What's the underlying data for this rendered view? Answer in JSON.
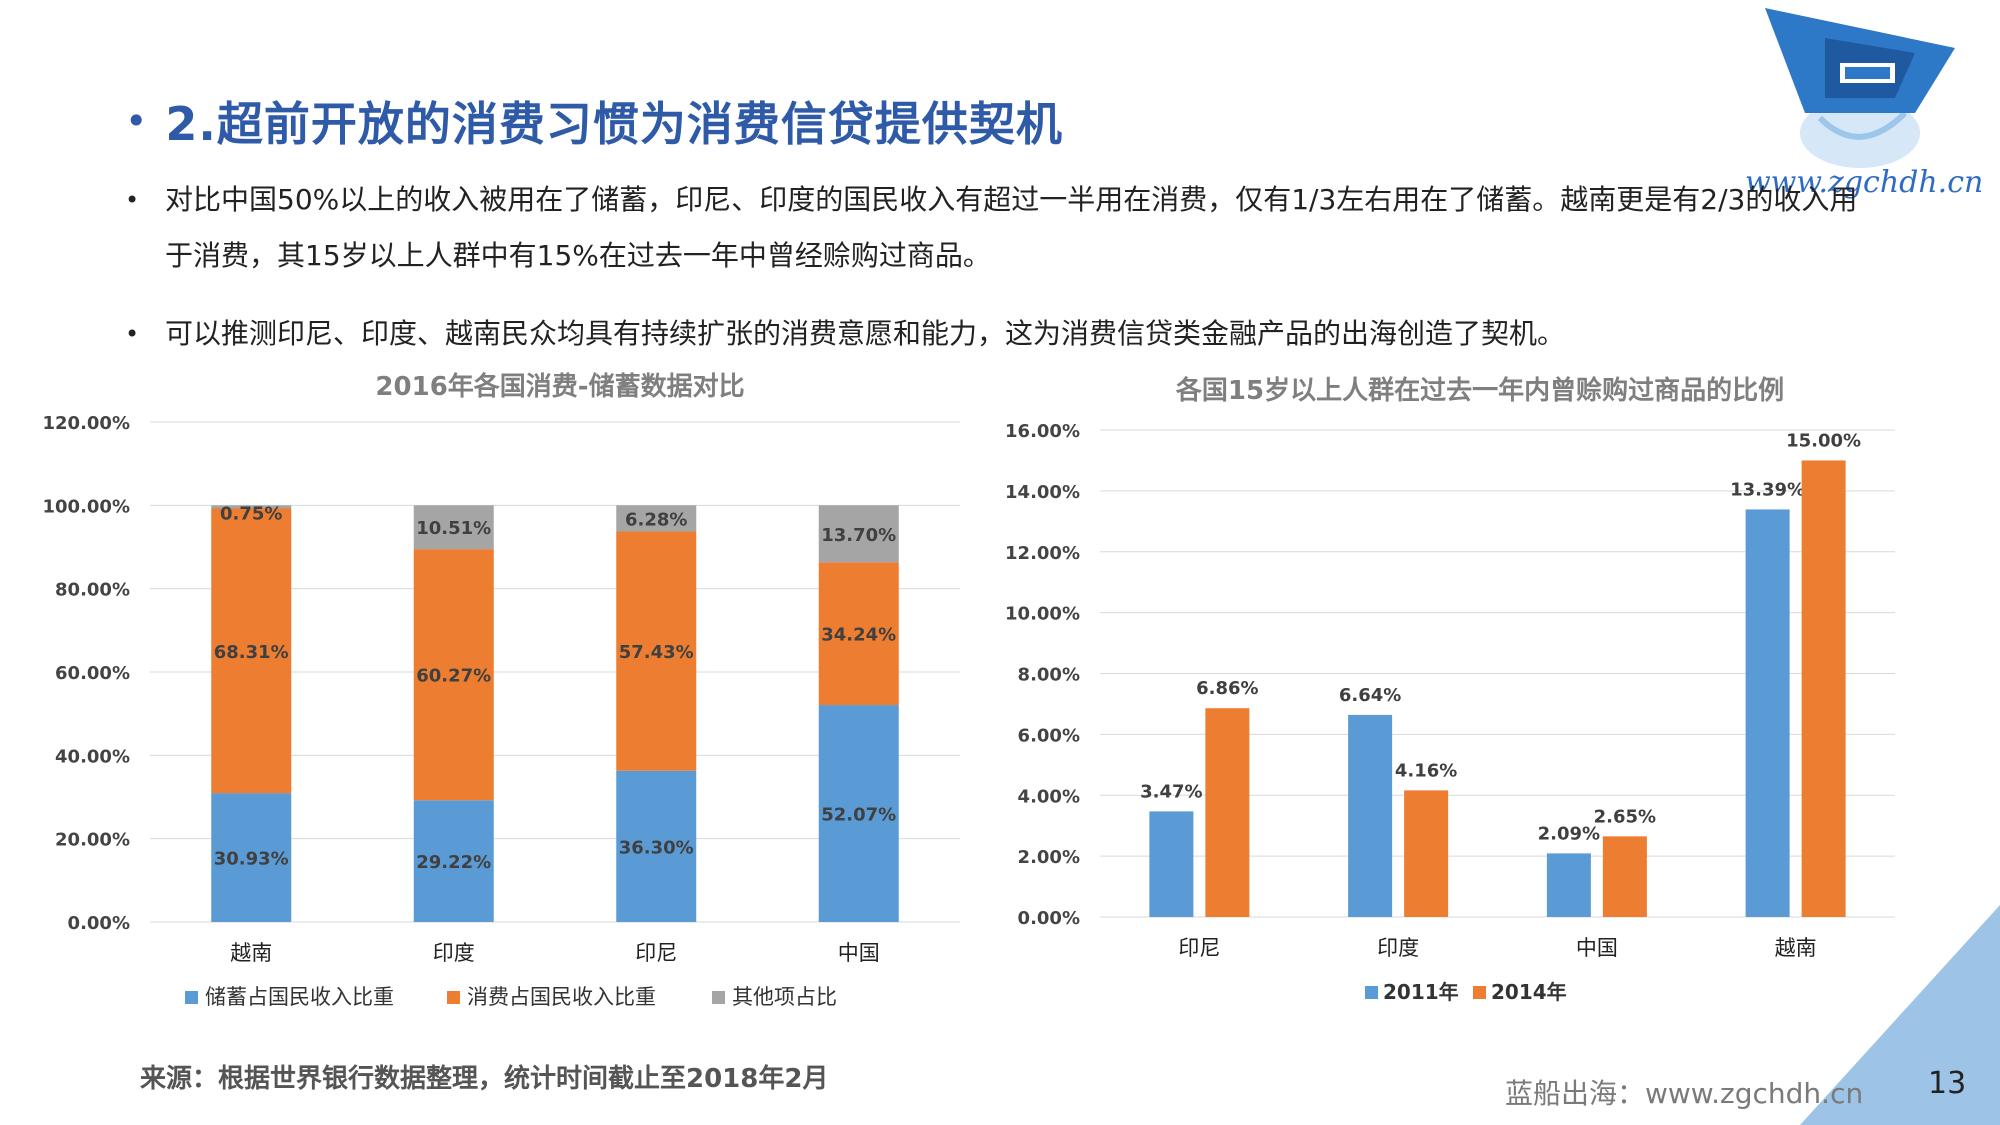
{
  "title": "2.超前开放的消费习惯为消费信贷提供契机",
  "bullets": [
    "对比中国50%以上的收入被用在了储蓄，印尼、印度的国民收入有超过一半用在消费，仅有1/3左右用在了储蓄。越南更是有2/3的收入用于消费，其15岁以上人群中有15%在过去一年中曾经赊购过商品。",
    "可以推测印尼、印度、越南民众均具有持续扩张的消费意愿和能力，这为消费信贷类金融产品的出海创造了契机。"
  ],
  "logo_url": "www.zgchdh.cn",
  "source": "来源：根据世界银行数据整理，统计时间截止至2018年2月",
  "footer_brand": "蓝船出海：www.zgchdh.cn",
  "page_number": "13",
  "colors": {
    "title": "#2e5aa8",
    "blue": "#5b9bd5",
    "orange": "#ed7d31",
    "gray": "#a5a5a5",
    "corner": "#9dc3e6"
  },
  "chart_data": [
    {
      "type": "bar",
      "stacked": true,
      "title": "2016年各国消费-储蓄数据对比",
      "categories": [
        "越南",
        "印度",
        "印尼",
        "中国"
      ],
      "series": [
        {
          "name": "储蓄占国民收入比重",
          "values": [
            30.93,
            29.22,
            36.3,
            52.07
          ],
          "labels": [
            "30.93%",
            "29.22%",
            "36.30%",
            "52.07%"
          ]
        },
        {
          "name": "消费占国民收入比重",
          "values": [
            68.31,
            60.27,
            57.43,
            34.24
          ],
          "labels": [
            "68.31%",
            "60.27%",
            "57.43%",
            "34.24%"
          ]
        },
        {
          "name": "其他项占比",
          "values": [
            0.75,
            10.51,
            6.28,
            13.7
          ],
          "labels": [
            "0.75%",
            "10.51%",
            "6.28%",
            "13.70%"
          ]
        }
      ],
      "yticks": [
        "0.00%",
        "20.00%",
        "40.00%",
        "60.00%",
        "80.00%",
        "100.00%",
        "120.00%"
      ],
      "ylim": [
        0,
        120
      ],
      "legend": "bottom"
    },
    {
      "type": "bar",
      "stacked": false,
      "title": "各国15岁以上人群在过去一年内曾赊购过商品的比例",
      "categories": [
        "印尼",
        "印度",
        "中国",
        "越南"
      ],
      "series": [
        {
          "name": "2011年",
          "values": [
            3.47,
            6.64,
            2.09,
            13.39
          ],
          "labels": [
            "3.47%",
            "6.64%",
            "2.09%",
            "13.39%"
          ]
        },
        {
          "name": "2014年",
          "values": [
            6.86,
            4.16,
            2.65,
            15.0
          ],
          "labels": [
            "6.86%",
            "4.16%",
            "2.65%",
            "15.00%"
          ]
        }
      ],
      "yticks": [
        "0.00%",
        "2.00%",
        "4.00%",
        "6.00%",
        "8.00%",
        "10.00%",
        "12.00%",
        "14.00%",
        "16.00%"
      ],
      "ylim": [
        0,
        16
      ],
      "legend": "bottom"
    }
  ]
}
